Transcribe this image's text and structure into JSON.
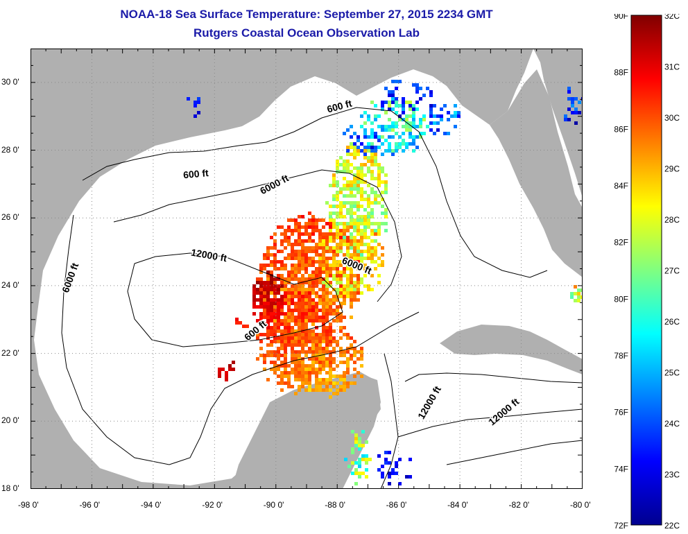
{
  "title": {
    "line1": "NOAA-18 Sea Surface Temperature:  September 27, 2015 2234 GMT",
    "line2": "Rutgers Coastal Ocean Observation Lab"
  },
  "map": {
    "lon_range": [
      -98,
      -80
    ],
    "lat_range": [
      18,
      31
    ],
    "lon_ticks": [
      "-98 0'",
      "-96 0'",
      "-94 0'",
      "-92 0'",
      "-90 0'",
      "-88 0'",
      "-86 0'",
      "-84 0'",
      "-82 0'",
      "-80 0'"
    ],
    "lat_ticks": [
      "30 0'",
      "28 0'",
      "26 0'",
      "24 0'",
      "22 0'",
      "20 0'",
      "18 0'"
    ],
    "land_color": "#b0b0b0",
    "no_data_color": "#ffffff",
    "contour_labels": [
      {
        "text": "600 ft",
        "lon": -92.6,
        "lat": 27.2,
        "angle": -5
      },
      {
        "text": "600 ft",
        "lon": -87.9,
        "lat": 29.2,
        "angle": -15
      },
      {
        "text": "600 ft",
        "lon": -90.6,
        "lat": 22.6,
        "angle": -40
      },
      {
        "text": "6000 ft",
        "lon": -96.6,
        "lat": 24.2,
        "angle": -70
      },
      {
        "text": "6000 ft",
        "lon": -90.0,
        "lat": 26.9,
        "angle": -28
      },
      {
        "text": "6000 ft",
        "lon": -87.4,
        "lat": 24.5,
        "angle": 22
      },
      {
        "text": "12000 ft",
        "lon": -92.2,
        "lat": 24.8,
        "angle": 10
      },
      {
        "text": "12000 ft",
        "lon": -84.9,
        "lat": 20.5,
        "angle": -60
      },
      {
        "text": "12000 ft",
        "lon": -82.5,
        "lat": 20.2,
        "angle": -40
      }
    ]
  },
  "colorbar": {
    "f_labels": [
      "90F",
      "88F",
      "86F",
      "84F",
      "82F",
      "80F",
      "78F",
      "76F",
      "74F",
      "72F"
    ],
    "c_labels": [
      "32C",
      "31C",
      "30C",
      "29C",
      "28C",
      "27C",
      "26C",
      "25C",
      "24C",
      "23C",
      "22C"
    ],
    "f_range": [
      72,
      90
    ],
    "c_range": [
      22,
      32
    ],
    "colormap": [
      "#00008f",
      "#0000ff",
      "#0080ff",
      "#00ffff",
      "#80ff80",
      "#ffff00",
      "#ff8000",
      "#ff0000",
      "#800000"
    ]
  }
}
